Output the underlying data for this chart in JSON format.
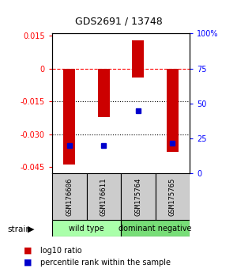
{
  "title": "GDS2691 / 13748",
  "samples": [
    "GSM176606",
    "GSM176611",
    "GSM175764",
    "GSM175765"
  ],
  "bar_values": [
    -0.044,
    -0.022,
    0.013,
    -0.038
  ],
  "bar_bottoms": [
    0,
    0,
    -0.004,
    0
  ],
  "percentile_pct": [
    20,
    20,
    45,
    22
  ],
  "groups": [
    {
      "label": "wild type",
      "color": "#aaffaa",
      "start": 0,
      "end": 2
    },
    {
      "label": "dominant negative",
      "color": "#77dd77",
      "start": 2,
      "end": 4
    }
  ],
  "ylim_left": [
    -0.048,
    0.016
  ],
  "ylim_right": [
    0,
    100
  ],
  "y_ticks_left": [
    -0.045,
    -0.03,
    -0.015,
    0,
    0.015
  ],
  "y_ticks_right": [
    0,
    25,
    50,
    75,
    100
  ],
  "bar_color": "#cc0000",
  "dot_color": "#0000cc",
  "dotted_lines": [
    -0.015,
    -0.03
  ],
  "background_color": "#ffffff",
  "strain_label": "strain",
  "legend_items": [
    {
      "color": "#cc0000",
      "label": "log10 ratio"
    },
    {
      "color": "#0000cc",
      "label": "percentile rank within the sample"
    }
  ],
  "bar_width": 0.35
}
